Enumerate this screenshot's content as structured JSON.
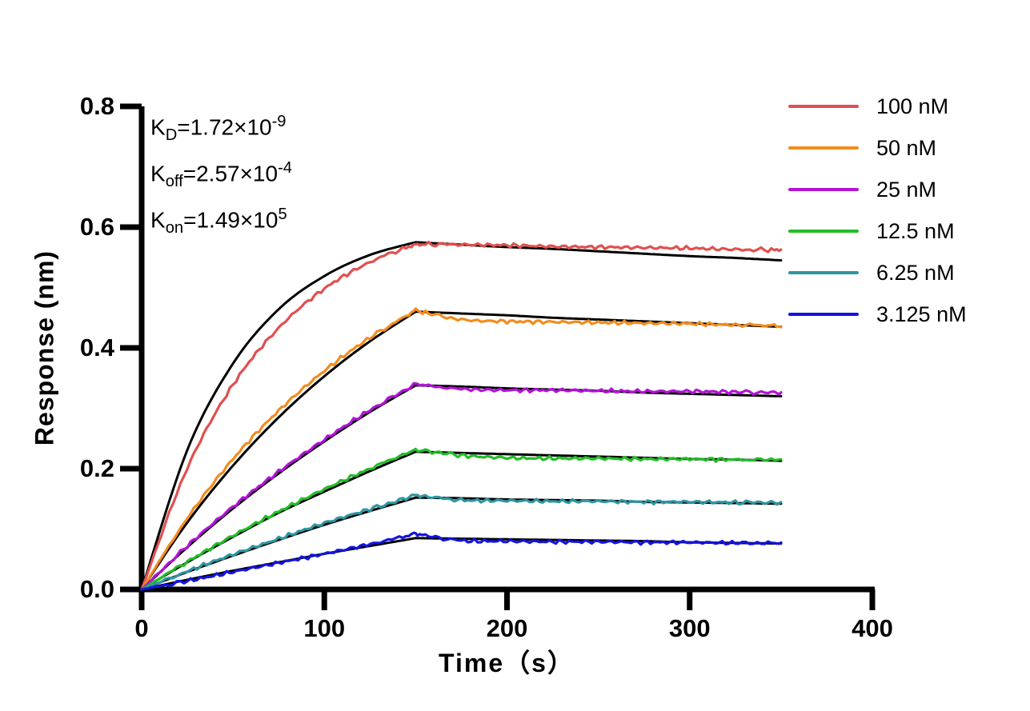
{
  "figure": {
    "background": "#ffffff",
    "axis_color": "#000000",
    "fit_line_color": "#000000"
  },
  "kinetics": [
    {
      "symbol": "K",
      "sub": "D",
      "eq": "=1.72×10",
      "sup": "-9"
    },
    {
      "symbol": "K",
      "sub": "off",
      "eq": "=2.57×10",
      "sup": "-4"
    },
    {
      "symbol": "K",
      "sub": "on",
      "eq": "=1.49×10",
      "sup": "5"
    }
  ],
  "chart_data": {
    "type": "line",
    "title": "",
    "xlabel": "Time（s）",
    "ylabel": "Response (nm)",
    "xlim": [
      0,
      400
    ],
    "ylim": [
      0,
      0.8
    ],
    "x_ticks": [
      0,
      100,
      200,
      300,
      400
    ],
    "x_tick_labels": [
      "0",
      "100",
      "200",
      "300",
      "400"
    ],
    "y_ticks": [
      0,
      0.2,
      0.4,
      0.6,
      0.8
    ],
    "y_tick_labels": [
      "0.0",
      "0.2",
      "0.4",
      "0.6",
      "0.8"
    ],
    "grid": false,
    "legend_position": "top-right",
    "association_end_s": 150,
    "x": [
      0,
      25,
      50,
      75,
      100,
      125,
      150,
      175,
      200,
      225,
      250,
      275,
      300,
      325,
      350
    ],
    "series": [
      {
        "name": "100 nM",
        "color": "#E0504F",
        "kind": "data",
        "values": [
          0,
          0.201,
          0.339,
          0.433,
          0.498,
          0.542,
          0.572,
          0.571,
          0.57,
          0.568,
          0.567,
          0.566,
          0.565,
          0.563,
          0.562
        ]
      },
      {
        "name": "50 nM",
        "color": "#F28C1E",
        "kind": "data",
        "values": [
          0,
          0.118,
          0.216,
          0.296,
          0.362,
          0.417,
          0.462,
          0.447,
          0.444,
          0.443,
          0.442,
          0.441,
          0.44,
          0.438,
          0.437
        ]
      },
      {
        "name": "25 nM",
        "color": "#B213D6",
        "kind": "data",
        "values": [
          0,
          0.072,
          0.137,
          0.195,
          0.248,
          0.297,
          0.34,
          0.332,
          0.33,
          0.33,
          0.329,
          0.328,
          0.328,
          0.327,
          0.326
        ]
      },
      {
        "name": "12.5 nM",
        "color": "#22BD27",
        "kind": "data",
        "values": [
          0,
          0.046,
          0.089,
          0.129,
          0.166,
          0.2,
          0.232,
          0.222,
          0.218,
          0.217,
          0.217,
          0.216,
          0.216,
          0.215,
          0.215
        ]
      },
      {
        "name": "6.25 nM",
        "color": "#2E96A0",
        "kind": "data",
        "values": [
          0,
          0.03,
          0.058,
          0.084,
          0.11,
          0.133,
          0.156,
          0.148,
          0.147,
          0.146,
          0.146,
          0.145,
          0.145,
          0.144,
          0.144
        ]
      },
      {
        "name": "3.125 nM",
        "color": "#1414E0",
        "kind": "data",
        "values": [
          0,
          0.014,
          0.029,
          0.044,
          0.059,
          0.075,
          0.092,
          0.081,
          0.08,
          0.079,
          0.079,
          0.078,
          0.078,
          0.077,
          0.077
        ]
      }
    ],
    "fits": [
      {
        "name": "fit 100 nM",
        "values": [
          0,
          0.231,
          0.374,
          0.464,
          0.519,
          0.554,
          0.575,
          0.571,
          0.567,
          0.564,
          0.56,
          0.556,
          0.552,
          0.549,
          0.545
        ]
      },
      {
        "name": "fit 50 nM",
        "values": [
          0,
          0.111,
          0.205,
          0.285,
          0.353,
          0.411,
          0.46,
          0.457,
          0.454,
          0.45,
          0.447,
          0.444,
          0.441,
          0.438,
          0.435
        ]
      },
      {
        "name": "fit 25 nM",
        "values": [
          0,
          0.07,
          0.134,
          0.192,
          0.245,
          0.294,
          0.338,
          0.336,
          0.333,
          0.331,
          0.329,
          0.326,
          0.324,
          0.322,
          0.32
        ]
      },
      {
        "name": "fit 12.5 nM",
        "values": [
          0,
          0.045,
          0.087,
          0.127,
          0.162,
          0.196,
          0.228,
          0.226,
          0.224,
          0.222,
          0.22,
          0.218,
          0.216,
          0.215,
          0.213
        ]
      },
      {
        "name": "fit 6.25 nM",
        "values": [
          0,
          0.029,
          0.056,
          0.082,
          0.107,
          0.13,
          0.152,
          0.151,
          0.149,
          0.148,
          0.147,
          0.145,
          0.144,
          0.143,
          0.142
        ]
      },
      {
        "name": "fit 3.125 nM",
        "values": [
          0,
          0.016,
          0.031,
          0.045,
          0.059,
          0.072,
          0.085,
          0.084,
          0.083,
          0.082,
          0.081,
          0.08,
          0.078,
          0.077,
          0.076
        ]
      }
    ]
  }
}
